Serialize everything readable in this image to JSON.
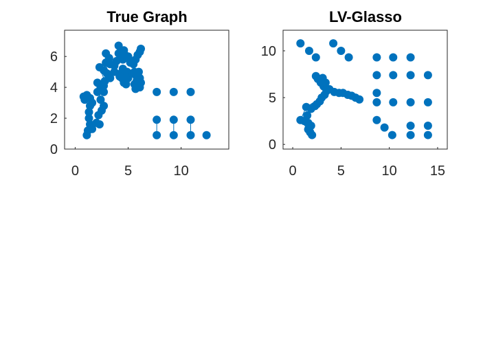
{
  "chart_data": [
    {
      "type": "scatter",
      "title": "True Graph",
      "xlabel": "",
      "ylabel": "",
      "xlim": [
        -1,
        14.5
      ],
      "ylim": [
        0,
        7.7
      ],
      "xticks": [
        0,
        5,
        10
      ],
      "yticks": [
        0,
        2,
        4,
        6
      ],
      "grid": false,
      "color": "#0072BD",
      "points": [
        [
          0.8,
          3.4
        ],
        [
          0.9,
          3.2
        ],
        [
          1.1,
          3.5
        ],
        [
          1.4,
          3.3
        ],
        [
          1.6,
          3.0
        ],
        [
          1.4,
          2.8
        ],
        [
          1.3,
          2.4
        ],
        [
          1.3,
          2.0
        ],
        [
          1.4,
          1.6
        ],
        [
          1.2,
          1.2
        ],
        [
          1.1,
          0.9
        ],
        [
          1.6,
          1.3
        ],
        [
          2.0,
          1.7
        ],
        [
          2.3,
          1.6
        ],
        [
          2.2,
          2.2
        ],
        [
          2.5,
          2.5
        ],
        [
          2.7,
          2.8
        ],
        [
          2.4,
          3.2
        ],
        [
          2.1,
          3.7
        ],
        [
          2.1,
          4.3
        ],
        [
          2.4,
          4.0
        ],
        [
          2.7,
          4.1
        ],
        [
          2.8,
          4.4
        ],
        [
          2.7,
          3.7
        ],
        [
          2.3,
          5.3
        ],
        [
          2.7,
          5.1
        ],
        [
          3.0,
          4.9
        ],
        [
          3.3,
          4.6
        ],
        [
          2.9,
          5.6
        ],
        [
          3.2,
          5.9
        ],
        [
          2.9,
          6.2
        ],
        [
          3.3,
          5.5
        ],
        [
          3.7,
          5.0
        ],
        [
          3.7,
          5.4
        ],
        [
          3.9,
          5.7
        ],
        [
          4.1,
          6.2
        ],
        [
          4.1,
          6.7
        ],
        [
          4.3,
          6.0
        ],
        [
          4.5,
          5.8
        ],
        [
          4.6,
          6.4
        ],
        [
          4.7,
          6.1
        ],
        [
          5.0,
          6.0
        ],
        [
          5.2,
          5.6
        ],
        [
          5.5,
          5.5
        ],
        [
          5.7,
          5.8
        ],
        [
          5.9,
          6.1
        ],
        [
          6.1,
          6.3
        ],
        [
          6.2,
          6.5
        ],
        [
          4.5,
          5.2
        ],
        [
          4.3,
          4.9
        ],
        [
          4.4,
          4.6
        ],
        [
          4.8,
          4.7
        ],
        [
          4.9,
          5.0
        ],
        [
          5.0,
          4.6
        ],
        [
          4.6,
          4.3
        ],
        [
          4.8,
          4.2
        ],
        [
          4.2,
          4.7
        ],
        [
          5.4,
          4.9
        ],
        [
          5.6,
          5.0
        ],
        [
          5.8,
          4.7
        ],
        [
          6.0,
          5.0
        ],
        [
          6.1,
          4.6
        ],
        [
          5.8,
          4.4
        ],
        [
          5.6,
          4.2
        ],
        [
          6.0,
          4.2
        ],
        [
          6.2,
          4.3
        ],
        [
          6.1,
          4.0
        ],
        [
          5.7,
          3.9
        ],
        [
          7.7,
          3.7
        ],
        [
          9.3,
          3.7
        ],
        [
          10.9,
          3.7
        ],
        [
          7.7,
          1.9
        ],
        [
          9.3,
          1.9
        ],
        [
          10.9,
          1.9
        ],
        [
          7.7,
          0.9
        ],
        [
          9.3,
          0.9
        ],
        [
          10.9,
          0.9
        ],
        [
          12.4,
          0.9
        ]
      ],
      "edges": [
        [
          [
            0.8,
            3.4
          ],
          [
            1.6,
            3.3
          ]
        ],
        [
          [
            1.6,
            3.3
          ],
          [
            1.3,
            2.4
          ]
        ],
        [
          [
            1.3,
            2.4
          ],
          [
            1.2,
            1.2
          ]
        ],
        [
          [
            1.2,
            1.2
          ],
          [
            1.1,
            0.9
          ]
        ],
        [
          [
            1.2,
            1.2
          ],
          [
            2.0,
            1.7
          ]
        ],
        [
          [
            2.0,
            1.7
          ],
          [
            2.5,
            2.5
          ]
        ],
        [
          [
            2.5,
            2.5
          ],
          [
            2.4,
            3.2
          ]
        ],
        [
          [
            2.4,
            3.2
          ],
          [
            2.1,
            4.3
          ]
        ],
        [
          [
            2.1,
            4.3
          ],
          [
            2.8,
            4.4
          ]
        ],
        [
          [
            2.8,
            4.4
          ],
          [
            2.3,
            5.3
          ]
        ],
        [
          [
            2.3,
            5.3
          ],
          [
            3.0,
            4.9
          ]
        ],
        [
          [
            3.0,
            4.9
          ],
          [
            2.9,
            6.2
          ]
        ],
        [
          [
            2.9,
            6.2
          ],
          [
            3.7,
            5.0
          ]
        ],
        [
          [
            3.7,
            5.0
          ],
          [
            4.1,
            6.7
          ]
        ],
        [
          [
            4.1,
            6.7
          ],
          [
            4.6,
            6.4
          ]
        ],
        [
          [
            4.6,
            6.4
          ],
          [
            5.2,
            5.6
          ]
        ],
        [
          [
            5.2,
            5.6
          ],
          [
            6.2,
            6.5
          ]
        ],
        [
          [
            4.5,
            5.2
          ],
          [
            4.6,
            4.3
          ]
        ],
        [
          [
            4.6,
            4.3
          ],
          [
            5.4,
            4.9
          ]
        ],
        [
          [
            5.4,
            4.9
          ],
          [
            6.1,
            4.0
          ]
        ],
        [
          [
            5.8,
            4.7
          ],
          [
            5.7,
            3.9
          ]
        ],
        [
          [
            7.7,
            1.9
          ],
          [
            7.7,
            0.9
          ]
        ],
        [
          [
            9.3,
            1.9
          ],
          [
            9.3,
            0.9
          ]
        ],
        [
          [
            10.9,
            1.9
          ],
          [
            10.9,
            0.9
          ]
        ]
      ]
    },
    {
      "type": "scatter",
      "title": "LV-Glasso",
      "xlabel": "",
      "ylabel": "",
      "xlim": [
        -1,
        16
      ],
      "ylim": [
        -0.5,
        12.2
      ],
      "xticks": [
        0,
        5,
        10,
        15
      ],
      "yticks": [
        0,
        5,
        10
      ],
      "grid": false,
      "color": "#0072BD",
      "points": [
        [
          0.8,
          10.8
        ],
        [
          1.7,
          10.0
        ],
        [
          2.4,
          9.3
        ],
        [
          4.2,
          10.8
        ],
        [
          5.0,
          10.0
        ],
        [
          5.8,
          9.3
        ],
        [
          0.8,
          2.6
        ],
        [
          1.2,
          2.5
        ],
        [
          1.6,
          2.3
        ],
        [
          1.9,
          2.0
        ],
        [
          1.6,
          1.6
        ],
        [
          1.8,
          1.3
        ],
        [
          2.0,
          1.0
        ],
        [
          1.5,
          3.1
        ],
        [
          1.4,
          4.0
        ],
        [
          1.9,
          3.8
        ],
        [
          2.3,
          4.1
        ],
        [
          2.5,
          4.3
        ],
        [
          2.8,
          4.6
        ],
        [
          3.0,
          5.0
        ],
        [
          3.3,
          5.3
        ],
        [
          3.5,
          5.7
        ],
        [
          3.8,
          5.9
        ],
        [
          3.2,
          6.2
        ],
        [
          2.9,
          6.6
        ],
        [
          2.6,
          7.0
        ],
        [
          2.4,
          7.3
        ],
        [
          3.1,
          7.1
        ],
        [
          3.4,
          6.6
        ],
        [
          4.3,
          5.6
        ],
        [
          4.8,
          5.5
        ],
        [
          5.2,
          5.5
        ],
        [
          5.7,
          5.3
        ],
        [
          6.1,
          5.2
        ],
        [
          6.5,
          5.0
        ],
        [
          6.9,
          4.8
        ],
        [
          8.7,
          9.3
        ],
        [
          10.4,
          9.3
        ],
        [
          12.2,
          9.3
        ],
        [
          8.7,
          7.4
        ],
        [
          10.4,
          7.4
        ],
        [
          12.2,
          7.4
        ],
        [
          14.0,
          7.4
        ],
        [
          8.7,
          5.5
        ],
        [
          8.7,
          4.5
        ],
        [
          10.4,
          4.5
        ],
        [
          12.2,
          4.5
        ],
        [
          14.0,
          4.5
        ],
        [
          8.7,
          2.6
        ],
        [
          9.5,
          1.8
        ],
        [
          10.3,
          1.0
        ],
        [
          12.2,
          2.0
        ],
        [
          14.0,
          2.0
        ],
        [
          12.2,
          1.0
        ],
        [
          14.0,
          1.0
        ]
      ],
      "edges": [
        [
          [
            0.8,
            2.6
          ],
          [
            2.0,
            1.0
          ]
        ],
        [
          [
            0.8,
            2.6
          ],
          [
            1.4,
            4.0
          ]
        ],
        [
          [
            1.4,
            4.0
          ],
          [
            3.0,
            5.0
          ]
        ],
        [
          [
            3.0,
            5.0
          ],
          [
            3.8,
            5.9
          ]
        ],
        [
          [
            3.8,
            5.9
          ],
          [
            2.4,
            7.3
          ]
        ],
        [
          [
            3.8,
            5.9
          ],
          [
            6.9,
            4.8
          ]
        ],
        [
          [
            3.1,
            7.1
          ],
          [
            3.4,
            6.6
          ]
        ]
      ]
    }
  ]
}
